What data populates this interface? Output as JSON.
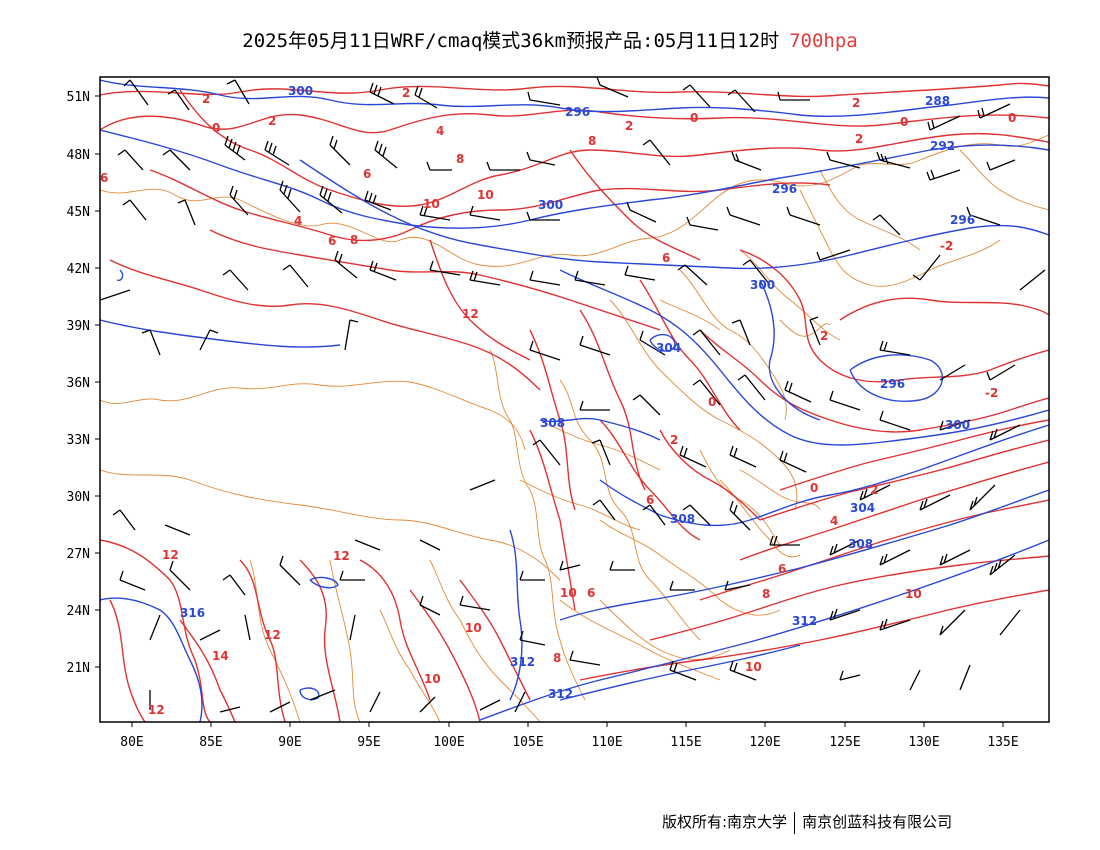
{
  "title": {
    "main": "2025年05月11日WRF/cmaq模式36km预报产品:05月11日12时",
    "level": "700hpa",
    "level_color": "#e63c3c"
  },
  "map": {
    "lat_labels": [
      "51N",
      "48N",
      "45N",
      "42N",
      "39N",
      "36N",
      "33N",
      "30N",
      "27N",
      "24N",
      "21N"
    ],
    "lon_labels": [
      "80E",
      "85E",
      "90E",
      "95E",
      "100E",
      "105E",
      "110E",
      "115E",
      "120E",
      "125E",
      "130E",
      "135E"
    ],
    "temperature_contour_color": "#e03232",
    "height_contour_color": "#2a48d8",
    "boundary_color": "#e08a3a",
    "wind_barb_color": "#000000",
    "temperature_labels": [
      "2",
      "0",
      "2",
      "4",
      "6",
      "8",
      "10",
      "2",
      "0",
      "2",
      "4",
      "6",
      "8",
      "10",
      "6",
      "8",
      "12",
      "6",
      "2",
      "0",
      "2",
      "0",
      "2",
      "0",
      "2",
      "-2",
      "-2",
      "0",
      "2",
      "4",
      "6",
      "8",
      "10",
      "12",
      "12",
      "12",
      "14",
      "12",
      "10",
      "10",
      "8",
      "6",
      "6",
      "10",
      "10"
    ],
    "height_labels": [
      "300",
      "296",
      "288",
      "292",
      "296",
      "296",
      "300",
      "300",
      "304",
      "296",
      "300",
      "308",
      "304",
      "308",
      "308",
      "312",
      "312",
      "312",
      "316"
    ]
  },
  "footer": {
    "copyright": "版权所有:南京大学",
    "company": "南京创蓝科技有限公司"
  }
}
